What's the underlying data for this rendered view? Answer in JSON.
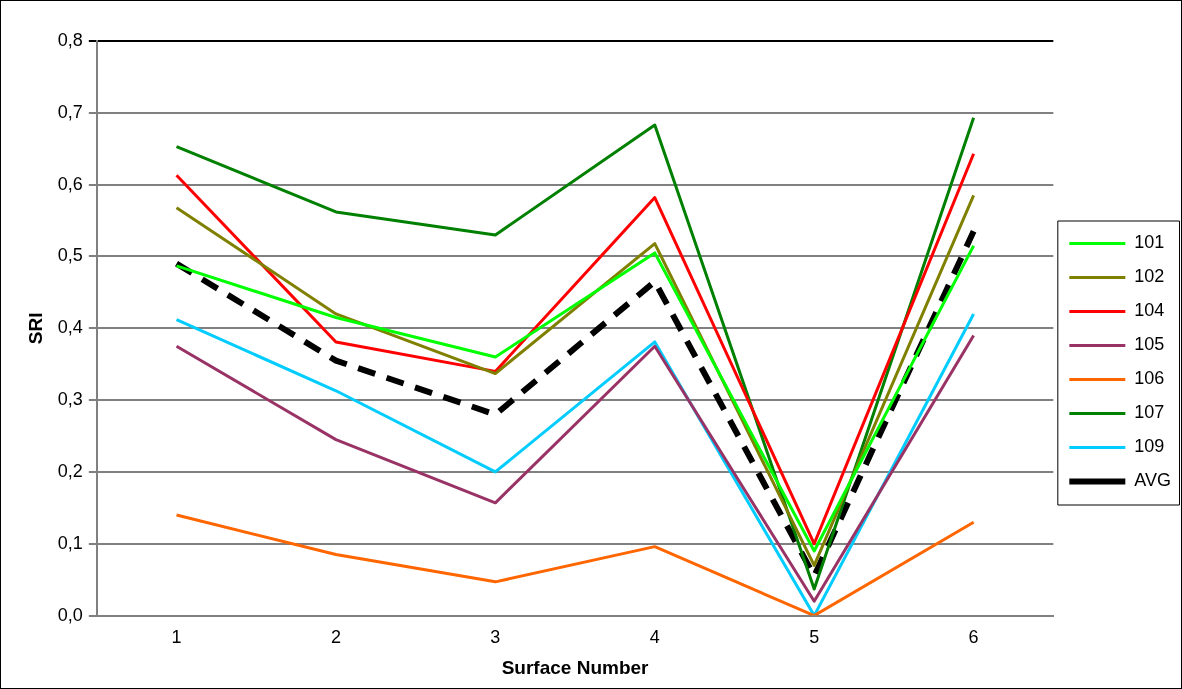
{
  "chart_data": {
    "type": "line",
    "xlabel": "Surface Number",
    "ylabel": "SRI",
    "categories": [
      "1",
      "2",
      "3",
      "4",
      "5",
      "6"
    ],
    "series": [
      {
        "name": "101",
        "color": "#00ff00",
        "values": [
          0.487,
          0.415,
          0.36,
          0.505,
          0.09,
          0.515
        ]
      },
      {
        "name": "102",
        "color": "#808000",
        "values": [
          0.568,
          0.42,
          0.337,
          0.518,
          0.07,
          0.585
        ]
      },
      {
        "name": "104",
        "color": "#ff0000",
        "values": [
          0.613,
          0.381,
          0.34,
          0.582,
          0.1,
          0.643
        ]
      },
      {
        "name": "105",
        "color": "#993366",
        "values": [
          0.375,
          0.245,
          0.157,
          0.375,
          0.02,
          0.39
        ]
      },
      {
        "name": "106",
        "color": "#ff6600",
        "values": [
          0.14,
          0.085,
          0.047,
          0.096,
          0.0,
          0.13
        ]
      },
      {
        "name": "107",
        "color": "#008000",
        "values": [
          0.653,
          0.562,
          0.53,
          0.683,
          0.037,
          0.693
        ]
      },
      {
        "name": "109",
        "color": "#00ccff",
        "values": [
          0.412,
          0.313,
          0.2,
          0.381,
          0.0,
          0.42
        ]
      },
      {
        "name": "AVG",
        "color": "#000000",
        "line_style": "dashed",
        "values": [
          0.49,
          0.355,
          0.28,
          0.465,
          0.055,
          0.535
        ]
      }
    ],
    "ylim": [
      0,
      0.8
    ],
    "yticks": [
      {
        "value": 0,
        "label": "0,0"
      },
      {
        "value": 0.1,
        "label": "0,1"
      },
      {
        "value": 0.2,
        "label": "0,2"
      },
      {
        "value": 0.3,
        "label": "0,3"
      },
      {
        "value": 0.4,
        "label": "0,4"
      },
      {
        "value": 0.5,
        "label": "0,5"
      },
      {
        "value": 0.6,
        "label": "0,6"
      },
      {
        "value": 0.7,
        "label": "0,7"
      },
      {
        "value": 0.8,
        "label": "0,8"
      }
    ],
    "grid": "y",
    "legend": "right",
    "marker": "none",
    "line_style": "solid"
  }
}
